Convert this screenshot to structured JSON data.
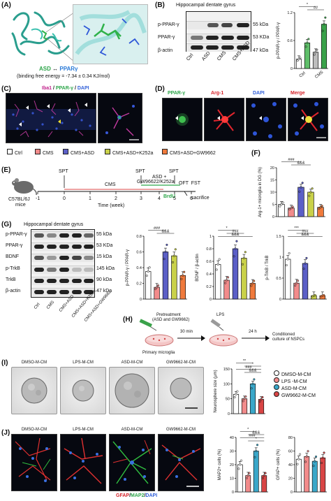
{
  "panel_letters": {
    "A": "(A)",
    "B": "(B)",
    "C": "(C)",
    "D": "(D)",
    "E": "(E)",
    "F": "(F)",
    "G": "(G)",
    "H": "(H)",
    "I": "(I)",
    "J": "(J)"
  },
  "panelA": {
    "binding_label_left": "ASD",
    "binding_arrow": "↔",
    "binding_label_right": "PPARγ",
    "binding_energy": "(binding free energy = -7.34 ± 0.34 KJ/mol)"
  },
  "panelB": {
    "title": "Hippocampal dentate gyrus",
    "rows": [
      {
        "name": "p-PPAR-γ",
        "kda": "55 kDa"
      },
      {
        "name": "PPAR-γ",
        "kda": "53 KDa"
      },
      {
        "name": "β-actin",
        "kda": "47 kDa"
      }
    ],
    "lanes": [
      "Ctrl",
      "ASD",
      "CMS",
      "CMS+ASD"
    ],
    "chart_ylabel": "p-PPAR-γ / PPAR-γ",
    "chart_xgroups": [
      "Ctrl",
      "CMS"
    ],
    "sig": [
      "*",
      "##"
    ]
  },
  "panelC": {
    "label_iba1": "Iba1",
    "label_sep1": " / ",
    "label_ppar": "PPAR-γ",
    "label_sep2": " / ",
    "label_dapi": "DAPI"
  },
  "panelD": {
    "titles": [
      "PPAR-γ",
      "Arg-1",
      "DAPI",
      "Merge"
    ]
  },
  "legend": {
    "items": [
      {
        "label": "Ctrl",
        "color": "#ffffff"
      },
      {
        "label": "CMS",
        "color": "#f28b8b"
      },
      {
        "label": "CMS+ASD",
        "color": "#5b5fc7"
      },
      {
        "label": "CMS+ASD+K252a",
        "color": "#c9d14a"
      },
      {
        "label": "CMS+ASD+GW9662",
        "color": "#f07a3c"
      }
    ]
  },
  "panelE": {
    "mouse_label_1": "C57BL/6J",
    "mouse_label_2": "mice",
    "spt_labels": [
      "SPT",
      "SPT",
      "SPT"
    ],
    "cms_label": "CMS",
    "asd_label_1": "ASD +",
    "asd_label_2": "GW96622/K252a",
    "brdu": "BrdU",
    "oft_fst": "OFT  FST",
    "sacrifice": "sacrifice",
    "ticks": [
      "-1",
      "0",
      "1",
      "2",
      "3",
      "4",
      "5",
      "6"
    ],
    "axis_label": "Time (week)"
  },
  "panelF": {
    "ylabel": "Arg-1+ microglia in DG (%)",
    "sig": [
      "###",
      "&&&"
    ]
  },
  "panelG": {
    "title": "Hippocampal dentate gyrus",
    "rows": [
      {
        "name": "p-PPAR-γ",
        "kda": "55 kDa"
      },
      {
        "name": "PPAR-γ",
        "kda": "53 KDa"
      },
      {
        "name": "BDNF",
        "kda": "15 kDa"
      },
      {
        "name": "p-TrkB",
        "kda": "145 kDa"
      },
      {
        "name": "TrkB",
        "kda": "90 kDa"
      },
      {
        "name": "β-actin",
        "kda": "47 kDa"
      }
    ],
    "lanes": [
      "Ctrl",
      "CMS",
      "CMS+ASD",
      "CMS+ASD+K252a",
      "CMS+ASD+GW9662"
    ],
    "chart1_ylabel": "p-PPAR-γ / PPAR-γ",
    "chart2_ylabel": "BDNF / β-actin",
    "chart3_ylabel": "p-TrkB / TrkB",
    "chart1_sig": [
      "###",
      "&&&"
    ],
    "chart2_sig": [
      "*",
      "###",
      "&&&"
    ],
    "chart3_sig": [
      "***",
      "###",
      "&&&"
    ]
  },
  "panelH": {
    "pretreat_1": "Pretreatment",
    "pretreat_2": "(ASD and GW9662)",
    "lps": "LPS",
    "t30": "30 min",
    "t24": "24 h",
    "primary": "Primary microglia",
    "conditioned_1": "Conditioned",
    "conditioned_2": "culture of NSPCs"
  },
  "panelI": {
    "titles": [
      "DMSO-M-CM",
      "LPS-M-CM",
      "ASD-M-CM",
      "GW9662-M-CM"
    ],
    "ylabel": "Neurosphere size (μm)",
    "sig": [
      "**",
      "*",
      "###",
      "&&&"
    ]
  },
  "legend2": {
    "items": [
      {
        "label": "DMSO-M-CM",
        "color": "#ffffff"
      },
      {
        "label": "LPS -M-CM",
        "color": "#f28b8b"
      },
      {
        "label": "ASD-M-CM",
        "color": "#3aa7c9"
      },
      {
        "label": "GW9662-M-CM",
        "color": "#d94545"
      }
    ]
  },
  "panelJ": {
    "titles": [
      "DMSO-M-CM",
      "LPS-M-CM",
      "ASD-M-CM",
      "GW9662-M-CM"
    ],
    "stain_gfap": "GFAP",
    "stain_sep1": "/",
    "stain_map2": "MAP2",
    "stain_sep2": "/",
    "stain_dapi": "DAPI",
    "chart1_ylabel": "MAP2+ cells (%)",
    "chart2_ylabel": "GFAP+ cells (%)",
    "chart1_sig": [
      "*",
      "&&&",
      "###",
      "*"
    ]
  },
  "colors": {
    "ctrl": "#ffffff",
    "cms": "#f28b8b",
    "asd": "#5b5fc7",
    "k252a": "#c9d14a",
    "gw": "#f07a3c",
    "cm_dmso": "#ffffff",
    "cm_lps": "#f28b8b",
    "cm_asd": "#3aa7c9",
    "cm_gw": "#d94545"
  },
  "chart_data": [
    {
      "id": "B",
      "type": "bar",
      "categories": [
        "Ctrl",
        "ASD",
        "CMS",
        "CMS+ASD"
      ],
      "values": [
        0.2,
        0.55,
        0.35,
        0.95
      ],
      "ylim": [
        0,
        1.2
      ]
    },
    {
      "id": "F",
      "type": "bar",
      "categories": [
        "Ctrl",
        "CMS",
        "CMS+ASD",
        "CMS+ASD+K252a",
        "CMS+ASD+GW9662"
      ],
      "values": [
        5,
        3.5,
        12,
        10,
        3.8
      ],
      "ylim": [
        0,
        20
      ],
      "yticks": [
        0,
        5,
        10,
        15,
        20
      ]
    },
    {
      "id": "G1",
      "type": "bar",
      "categories": [
        "Ctrl",
        "CMS",
        "CMS+ASD",
        "CMS+ASD+K252a",
        "CMS+ASD+GW9662"
      ],
      "values": [
        0.35,
        0.15,
        0.6,
        0.55,
        0.3
      ],
      "ylim": [
        0,
        0.8
      ],
      "yticks": [
        0,
        0.2,
        0.4,
        0.6,
        0.8
      ]
    },
    {
      "id": "G2",
      "type": "bar",
      "categories": [
        "Ctrl",
        "CMS",
        "CMS+ASD",
        "CMS+ASD+K252a",
        "CMS+ASD+GW9662"
      ],
      "values": [
        0.55,
        0.3,
        0.8,
        0.65,
        0.25
      ],
      "ylim": [
        0,
        1.0
      ],
      "yticks": [
        0,
        0.2,
        0.4,
        0.6,
        0.8,
        1.0
      ]
    },
    {
      "id": "G3",
      "type": "bar",
      "categories": [
        "Ctrl",
        "CMS",
        "CMS+ASD",
        "CMS+ASD+K252a",
        "CMS+ASD+GW9662"
      ],
      "values": [
        0.95,
        0.38,
        0.85,
        0.08,
        0.08
      ],
      "ylim": [
        0,
        1.5
      ],
      "yticks": [
        0,
        0.5,
        1.0,
        1.5
      ]
    },
    {
      "id": "I",
      "type": "bar",
      "categories": [
        "DMSO-M-CM",
        "LPS-M-CM",
        "ASD-M-CM",
        "GW9662-M-CM"
      ],
      "values": [
        65,
        50,
        100,
        48
      ],
      "ylim": [
        0,
        150
      ],
      "yticks": [
        0,
        50,
        100,
        150
      ]
    },
    {
      "id": "J1",
      "type": "bar",
      "categories": [
        "DMSO-M-CM",
        "LPS-M-CM",
        "ASD-M-CM",
        "GW9662-M-CM"
      ],
      "values": [
        20,
        12,
        30,
        12
      ],
      "ylim": [
        0,
        40
      ],
      "yticks": [
        0,
        10,
        20,
        30,
        40
      ]
    },
    {
      "id": "J2",
      "type": "bar",
      "categories": [
        "DMSO-M-CM",
        "LPS-M-CM",
        "ASD-M-CM",
        "GW9662-M-CM"
      ],
      "values": [
        48,
        52,
        45,
        50
      ],
      "ylim": [
        0,
        80
      ],
      "yticks": [
        0,
        20,
        40,
        60,
        80
      ]
    }
  ]
}
